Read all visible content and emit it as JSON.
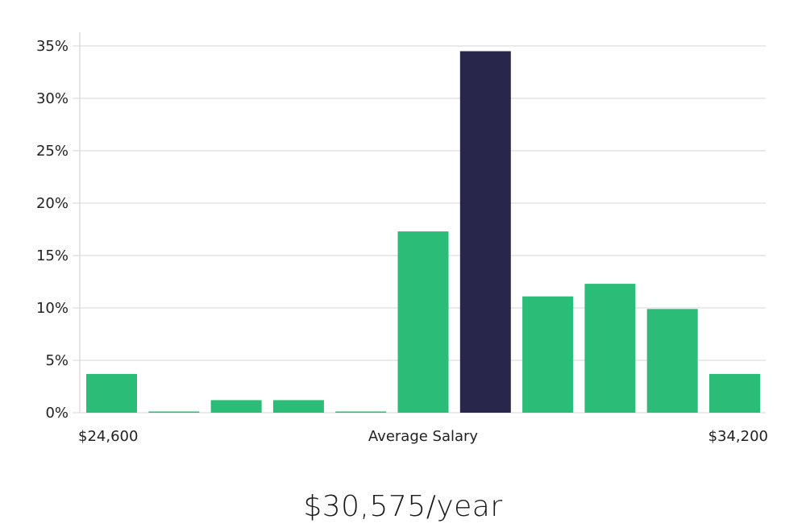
{
  "chart_data": {
    "type": "bar",
    "y_unit": "%",
    "ylim": [
      0,
      35
    ],
    "yticks": [
      "0%",
      "5%",
      "10%",
      "15%",
      "20%",
      "25%",
      "30%",
      "35%"
    ],
    "values": [
      3.7,
      0.1,
      1.2,
      1.2,
      0.1,
      17.3,
      34.5,
      11.1,
      12.3,
      9.9,
      3.7
    ],
    "highlight_index": 6,
    "colors": {
      "bar": "#2bbd77",
      "highlight": "#28264a",
      "grid": "#e3e3e3"
    },
    "x_labels": {
      "min": "$24,600",
      "center": "Average Salary",
      "max": "$34,200"
    },
    "grid": true
  },
  "summary": {
    "salary": "$30,575/year"
  }
}
